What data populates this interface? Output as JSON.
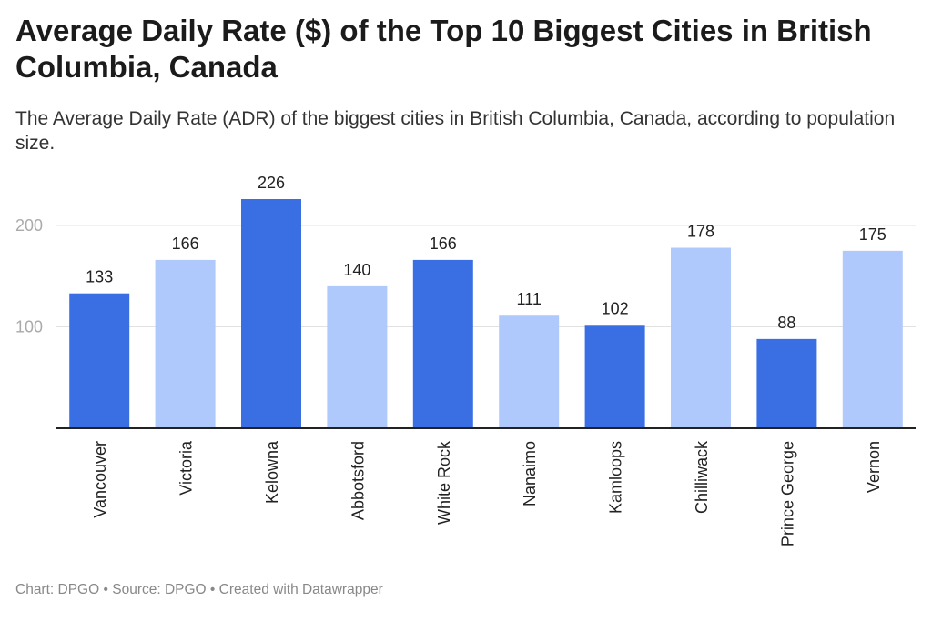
{
  "header": {
    "title": "Average Daily Rate ($) of the Top 10 Biggest Cities in British Columbia, Canada",
    "subtitle": "The Average Daily Rate (ADR) of the biggest cities in British Columbia, Canada, according to population size."
  },
  "footer": {
    "chart_label": "Chart: DPGO",
    "source_label": "Source: DPGO",
    "created_label": "Created with Datawrapper",
    "separator": "•"
  },
  "colors": {
    "dark_bar": "#3a6fe4",
    "light_bar": "#b0c9fc",
    "grid": "#e2e2e2",
    "axis": "#222222",
    "tick_label": "#aaaaaa",
    "value_label": "#222222"
  },
  "chart_data": {
    "type": "bar",
    "categories": [
      "Vancouver",
      "Victoria",
      "Kelowna",
      "Abbotsford",
      "White Rock",
      "Nanaimo",
      "Kamloops",
      "Chilliwack",
      "Prince George",
      "Vernon"
    ],
    "values": [
      133,
      166,
      226,
      140,
      166,
      111,
      102,
      178,
      88,
      175
    ],
    "bar_shades": [
      "dark",
      "light",
      "dark",
      "light",
      "dark",
      "light",
      "dark",
      "light",
      "dark",
      "light"
    ],
    "yticks": [
      100,
      200
    ],
    "ylim": [
      0,
      226
    ],
    "title": "Average Daily Rate ($) of the Top 10 Biggest Cities in British Columbia, Canada",
    "xlabel": "",
    "ylabel": "",
    "grid": true,
    "legend": "none"
  }
}
